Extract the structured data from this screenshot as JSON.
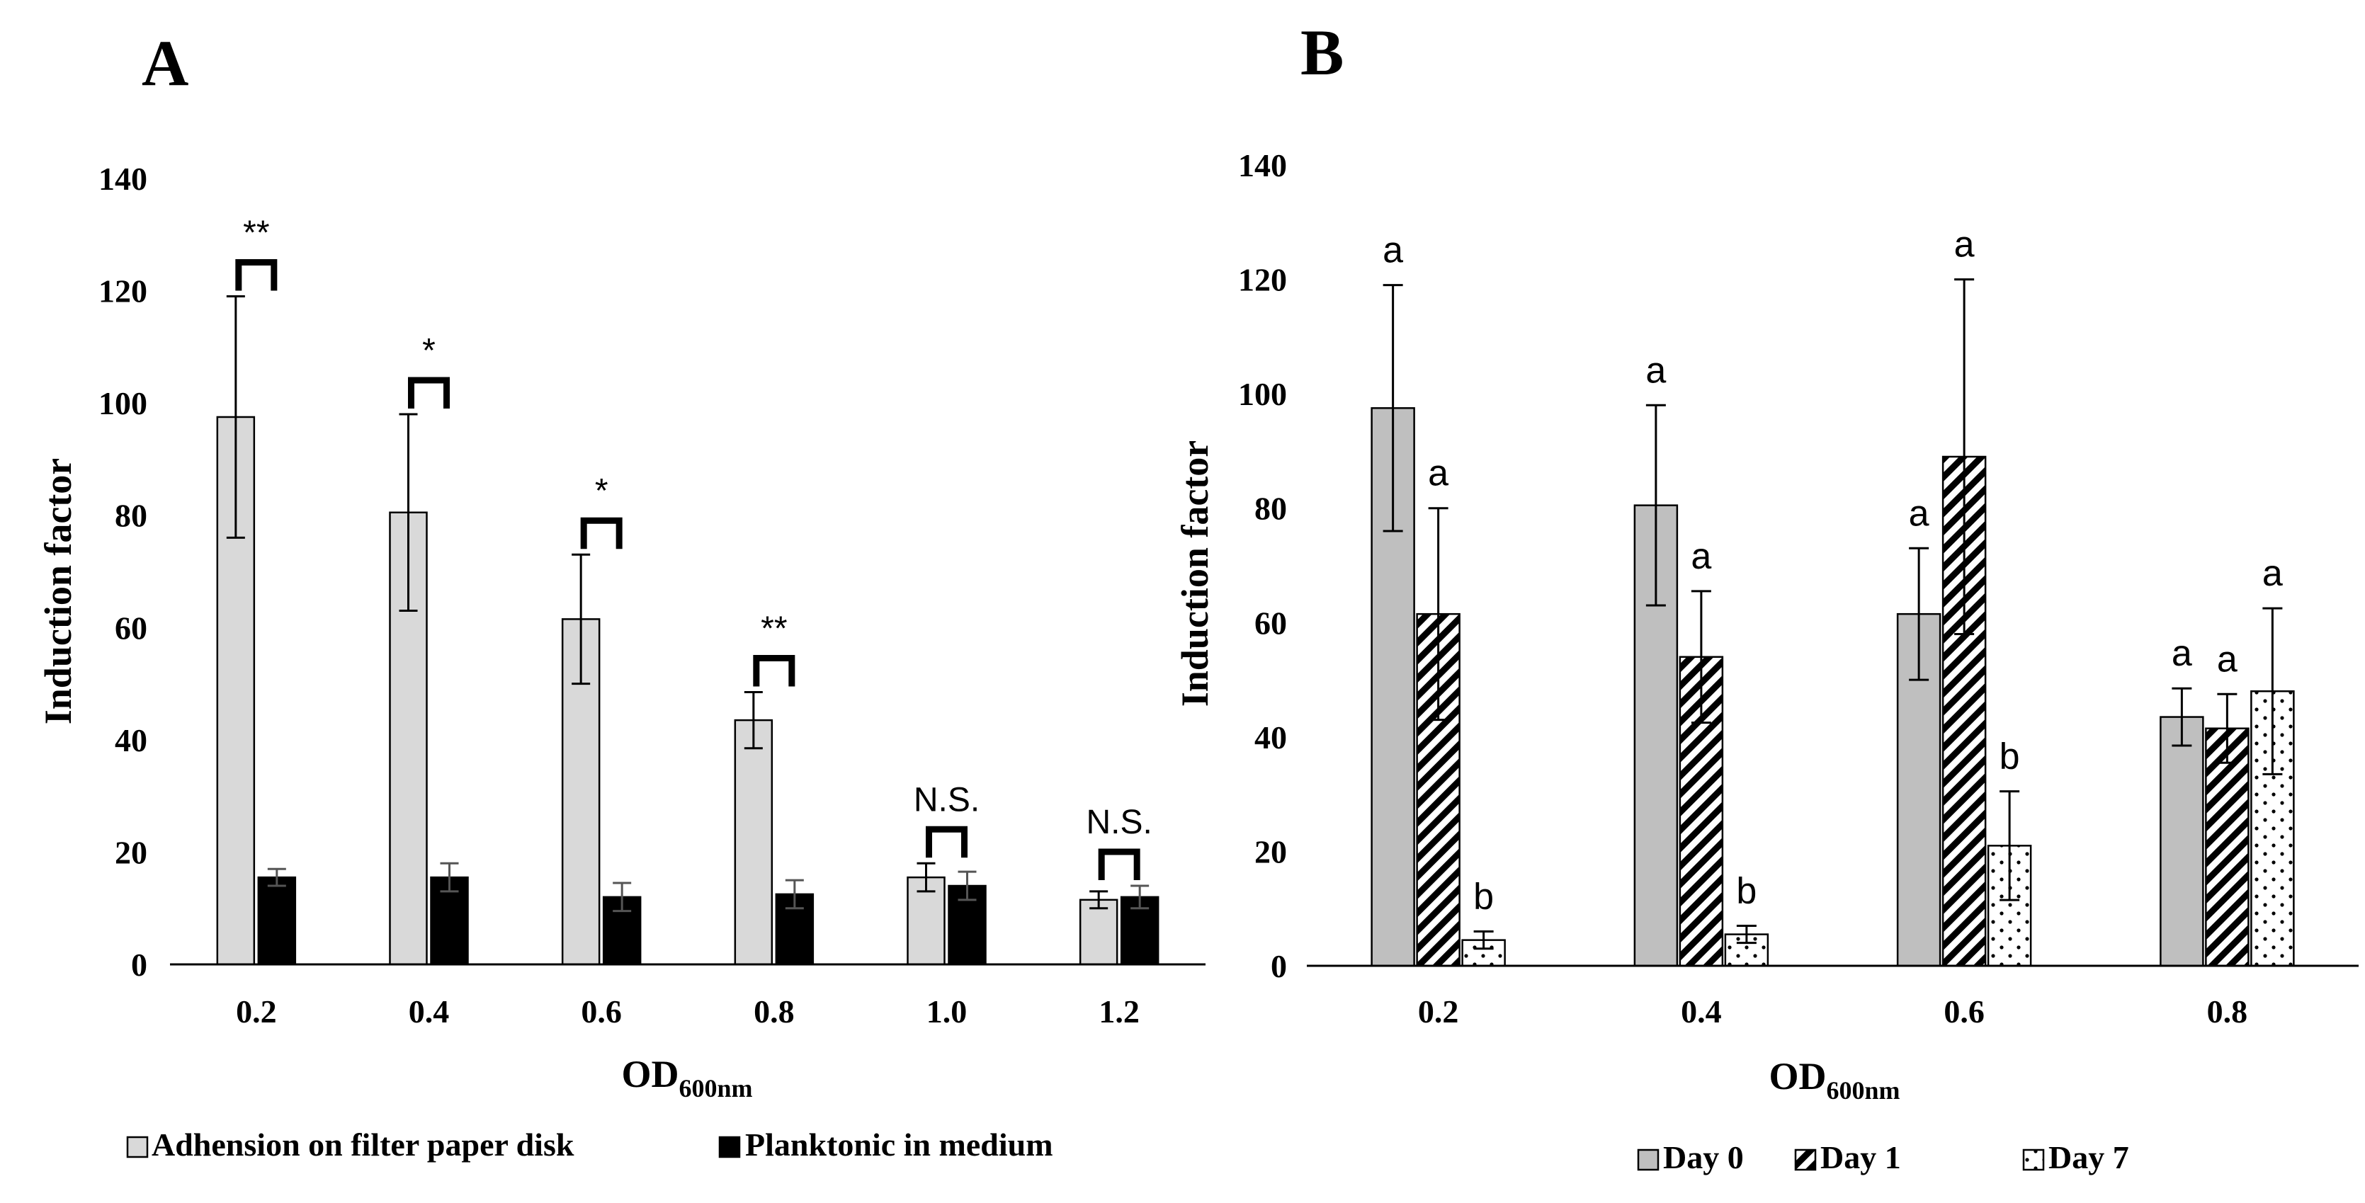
{
  "chart_data": [
    {
      "type": "bar",
      "panel_label": "A",
      "title": "",
      "xlabel": "OD",
      "xlabel_sub": "600nm",
      "ylabel": "Induction factor",
      "ylim": [
        0,
        140
      ],
      "yticks": [
        "0",
        "20",
        "40",
        "60",
        "80",
        "100",
        "120",
        "140"
      ],
      "grid": false,
      "legend_position": "bottom",
      "categories": [
        "0.2",
        "0.4",
        "0.6",
        "0.8",
        "1.0",
        "1.2"
      ],
      "series": [
        {
          "name": "Adhension on filter paper disk",
          "fill": "#d9d9d9",
          "values": [
            97.5,
            80.5,
            61.5,
            43.5,
            15.5,
            11.5
          ],
          "errors": [
            21.5,
            17.5,
            11.5,
            5.0,
            2.5,
            1.5
          ]
        },
        {
          "name": "Planktonic in medium",
          "fill": "#000000",
          "values": [
            15.5,
            15.5,
            12.0,
            12.5,
            14.0,
            12.0
          ],
          "errors": [
            1.5,
            2.5,
            2.5,
            2.5,
            2.5,
            2.0
          ]
        }
      ],
      "annotations": [
        "**",
        "*",
        "*",
        "**",
        "N.S.",
        "N.S."
      ]
    },
    {
      "type": "bar",
      "panel_label": "B",
      "title": "",
      "xlabel": "OD",
      "xlabel_sub": "600nm",
      "ylabel": "Induction factor",
      "ylim": [
        0,
        140
      ],
      "yticks": [
        "0",
        "20",
        "40",
        "60",
        "80",
        "100",
        "120",
        "140"
      ],
      "grid": false,
      "legend_position": "bottom",
      "categories": [
        "0.2",
        "0.4",
        "0.6",
        "0.8"
      ],
      "series": [
        {
          "name": "Day 0",
          "fill": "#bfbfbf",
          "pattern": "solid",
          "values": [
            97.5,
            80.5,
            61.5,
            43.5
          ],
          "errors": [
            21.5,
            17.5,
            11.5,
            5.0
          ],
          "labels": [
            "a",
            "a",
            "a",
            "a"
          ]
        },
        {
          "name": "Day 1",
          "fill": "#000000",
          "pattern": "diagonal",
          "values": [
            61.5,
            54.0,
            89.0,
            41.5
          ],
          "errors": [
            18.5,
            11.5,
            31.0,
            6.0
          ],
          "labels": [
            "a",
            "a",
            "a",
            "a"
          ]
        },
        {
          "name": "Day 7",
          "fill": "#000000",
          "pattern": "dots",
          "values": [
            4.5,
            5.5,
            21.0,
            48.0
          ],
          "errors": [
            1.5,
            1.5,
            9.5,
            14.5
          ],
          "labels": [
            "b",
            "b",
            "b",
            "a"
          ]
        }
      ]
    }
  ]
}
